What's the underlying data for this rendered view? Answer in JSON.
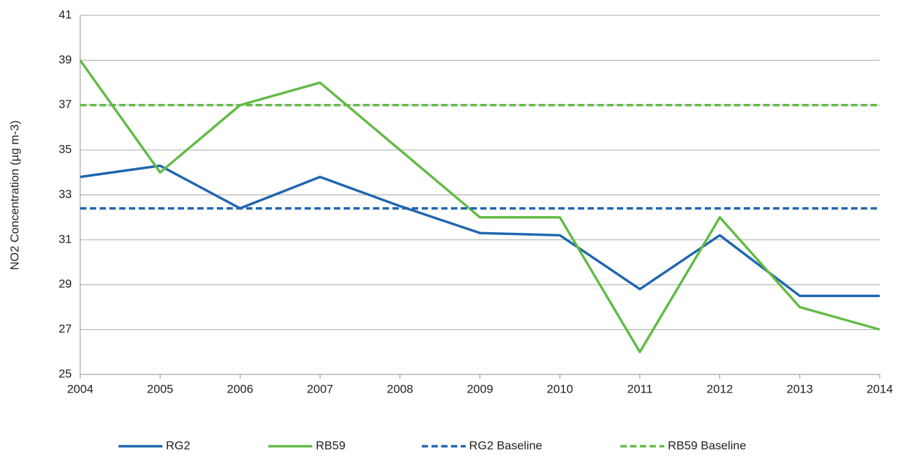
{
  "chart_data": {
    "type": "line",
    "y_label": "NO2 Concentration  (µg m-3)",
    "x": [
      2004,
      2005,
      2006,
      2007,
      2008,
      2009,
      2010,
      2011,
      2012,
      2013,
      2014
    ],
    "xlim": [
      2004,
      2014
    ],
    "xticks": [
      2004,
      2005,
      2006,
      2007,
      2008,
      2009,
      2010,
      2011,
      2012,
      2013,
      2014
    ],
    "ylim": [
      25,
      41
    ],
    "yticks": [
      25,
      27,
      29,
      31,
      33,
      35,
      37,
      39,
      41
    ],
    "grid": true,
    "legend": "bottom",
    "series": [
      {
        "name": "RG2",
        "color": "#1f66b0",
        "dashed": false,
        "values": [
          33.8,
          34.3,
          32.4,
          33.8,
          32.5,
          31.3,
          31.2,
          28.8,
          31.2,
          28.5,
          28.5
        ]
      },
      {
        "name": "RB59",
        "color": "#62bb46",
        "dashed": false,
        "values": [
          39,
          34,
          37,
          38,
          35,
          32,
          32,
          26,
          32,
          28,
          27
        ]
      },
      {
        "name": "RG2 Baseline",
        "color": "#1f66b0",
        "dashed": true,
        "values": [
          32.4,
          32.4,
          32.4,
          32.4,
          32.4,
          32.4,
          32.4,
          32.4,
          32.4,
          32.4,
          32.4
        ]
      },
      {
        "name": "RB59 Baseline",
        "color": "#62bb46",
        "dashed": true,
        "values": [
          37,
          37,
          37,
          37,
          37,
          37,
          37,
          37,
          37,
          37,
          37
        ]
      }
    ]
  }
}
